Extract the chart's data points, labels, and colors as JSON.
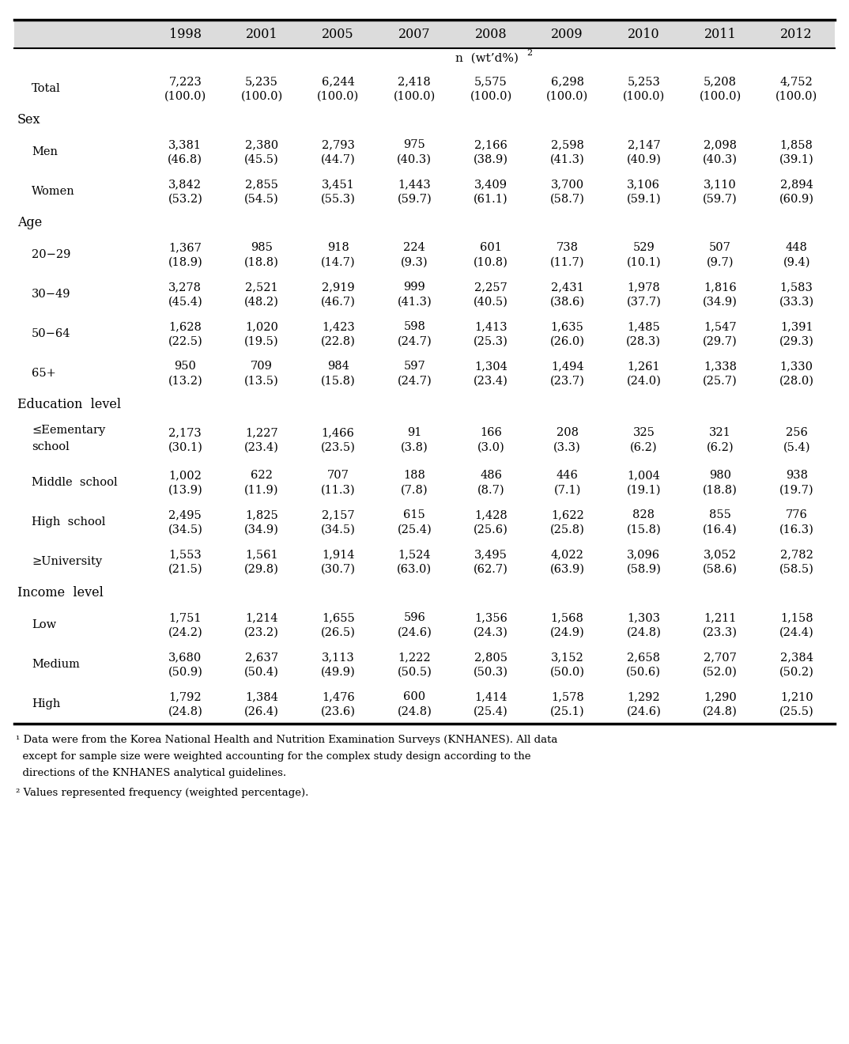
{
  "years": [
    "1998",
    "2001",
    "2005",
    "2007",
    "2008",
    "2009",
    "2010",
    "2011",
    "2012"
  ],
  "rows": [
    {
      "label": "Total",
      "indent": 0,
      "is_section": false,
      "two_line": false,
      "values": [
        [
          "7,223",
          "(100.0)"
        ],
        [
          "5,235",
          "(100.0)"
        ],
        [
          "6,244",
          "(100.0)"
        ],
        [
          "2,418",
          "(100.0)"
        ],
        [
          "5,575",
          "(100.0)"
        ],
        [
          "6,298",
          "(100.0)"
        ],
        [
          "5,253",
          "(100.0)"
        ],
        [
          "5,208",
          "(100.0)"
        ],
        [
          "4,752",
          "(100.0)"
        ]
      ]
    },
    {
      "label": "Sex",
      "indent": 0,
      "is_section": true,
      "two_line": false,
      "values": []
    },
    {
      "label": "  Men",
      "indent": 1,
      "is_section": false,
      "two_line": false,
      "values": [
        [
          "3,381",
          "(46.8)"
        ],
        [
          "2,380",
          "(45.5)"
        ],
        [
          "2,793",
          "(44.7)"
        ],
        [
          "975",
          "(40.3)"
        ],
        [
          "2,166",
          "(38.9)"
        ],
        [
          "2,598",
          "(41.3)"
        ],
        [
          "2,147",
          "(40.9)"
        ],
        [
          "2,098",
          "(40.3)"
        ],
        [
          "1,858",
          "(39.1)"
        ]
      ]
    },
    {
      "label": "  Women",
      "indent": 1,
      "is_section": false,
      "two_line": false,
      "values": [
        [
          "3,842",
          "(53.2)"
        ],
        [
          "2,855",
          "(54.5)"
        ],
        [
          "3,451",
          "(55.3)"
        ],
        [
          "1,443",
          "(59.7)"
        ],
        [
          "3,409",
          "(61.1)"
        ],
        [
          "3,700",
          "(58.7)"
        ],
        [
          "3,106",
          "(59.1)"
        ],
        [
          "3,110",
          "(59.7)"
        ],
        [
          "2,894",
          "(60.9)"
        ]
      ]
    },
    {
      "label": "Age",
      "indent": 0,
      "is_section": true,
      "two_line": false,
      "values": []
    },
    {
      "label": "  20−29",
      "indent": 1,
      "is_section": false,
      "two_line": false,
      "values": [
        [
          "1,367",
          "(18.9)"
        ],
        [
          "985",
          "(18.8)"
        ],
        [
          "918",
          "(14.7)"
        ],
        [
          "224",
          "(9.3)"
        ],
        [
          "601",
          "(10.8)"
        ],
        [
          "738",
          "(11.7)"
        ],
        [
          "529",
          "(10.1)"
        ],
        [
          "507",
          "(9.7)"
        ],
        [
          "448",
          "(9.4)"
        ]
      ]
    },
    {
      "label": "  30−49",
      "indent": 1,
      "is_section": false,
      "two_line": false,
      "values": [
        [
          "3,278",
          "(45.4)"
        ],
        [
          "2,521",
          "(48.2)"
        ],
        [
          "2,919",
          "(46.7)"
        ],
        [
          "999",
          "(41.3)"
        ],
        [
          "2,257",
          "(40.5)"
        ],
        [
          "2,431",
          "(38.6)"
        ],
        [
          "1,978",
          "(37.7)"
        ],
        [
          "1,816",
          "(34.9)"
        ],
        [
          "1,583",
          "(33.3)"
        ]
      ]
    },
    {
      "label": "  50−64",
      "indent": 1,
      "is_section": false,
      "two_line": false,
      "values": [
        [
          "1,628",
          "(22.5)"
        ],
        [
          "1,020",
          "(19.5)"
        ],
        [
          "1,423",
          "(22.8)"
        ],
        [
          "598",
          "(24.7)"
        ],
        [
          "1,413",
          "(25.3)"
        ],
        [
          "1,635",
          "(26.0)"
        ],
        [
          "1,485",
          "(28.3)"
        ],
        [
          "1,547",
          "(29.7)"
        ],
        [
          "1,391",
          "(29.3)"
        ]
      ]
    },
    {
      "label": "  65+",
      "indent": 1,
      "is_section": false,
      "two_line": false,
      "values": [
        [
          "950",
          "(13.2)"
        ],
        [
          "709",
          "(13.5)"
        ],
        [
          "984",
          "(15.8)"
        ],
        [
          "597",
          "(24.7)"
        ],
        [
          "1,304",
          "(23.4)"
        ],
        [
          "1,494",
          "(23.7)"
        ],
        [
          "1,261",
          "(24.0)"
        ],
        [
          "1,338",
          "(25.7)"
        ],
        [
          "1,330",
          "(28.0)"
        ]
      ]
    },
    {
      "label": "Education  level",
      "indent": 0,
      "is_section": true,
      "two_line": false,
      "values": []
    },
    {
      "label": "  ≤Eementary\n  school",
      "indent": 1,
      "is_section": false,
      "two_line": true,
      "values": [
        [
          "2,173",
          "(30.1)"
        ],
        [
          "1,227",
          "(23.4)"
        ],
        [
          "1,466",
          "(23.5)"
        ],
        [
          "91",
          "(3.8)"
        ],
        [
          "166",
          "(3.0)"
        ],
        [
          "208",
          "(3.3)"
        ],
        [
          "325",
          "(6.2)"
        ],
        [
          "321",
          "(6.2)"
        ],
        [
          "256",
          "(5.4)"
        ]
      ]
    },
    {
      "label": "  Middle  school",
      "indent": 1,
      "is_section": false,
      "two_line": false,
      "values": [
        [
          "1,002",
          "(13.9)"
        ],
        [
          "622",
          "(11.9)"
        ],
        [
          "707",
          "(11.3)"
        ],
        [
          "188",
          "(7.8)"
        ],
        [
          "486",
          "(8.7)"
        ],
        [
          "446",
          "(7.1)"
        ],
        [
          "1,004",
          "(19.1)"
        ],
        [
          "980",
          "(18.8)"
        ],
        [
          "938",
          "(19.7)"
        ]
      ]
    },
    {
      "label": "  High  school",
      "indent": 1,
      "is_section": false,
      "two_line": false,
      "values": [
        [
          "2,495",
          "(34.5)"
        ],
        [
          "1,825",
          "(34.9)"
        ],
        [
          "2,157",
          "(34.5)"
        ],
        [
          "615",
          "(25.4)"
        ],
        [
          "1,428",
          "(25.6)"
        ],
        [
          "1,622",
          "(25.8)"
        ],
        [
          "828",
          "(15.8)"
        ],
        [
          "855",
          "(16.4)"
        ],
        [
          "776",
          "(16.3)"
        ]
      ]
    },
    {
      "label": "  ≥University",
      "indent": 1,
      "is_section": false,
      "two_line": false,
      "values": [
        [
          "1,553",
          "(21.5)"
        ],
        [
          "1,561",
          "(29.8)"
        ],
        [
          "1,914",
          "(30.7)"
        ],
        [
          "1,524",
          "(63.0)"
        ],
        [
          "3,495",
          "(62.7)"
        ],
        [
          "4,022",
          "(63.9)"
        ],
        [
          "3,096",
          "(58.9)"
        ],
        [
          "3,052",
          "(58.6)"
        ],
        [
          "2,782",
          "(58.5)"
        ]
      ]
    },
    {
      "label": "Income  level",
      "indent": 0,
      "is_section": true,
      "two_line": false,
      "values": []
    },
    {
      "label": "  Low",
      "indent": 1,
      "is_section": false,
      "two_line": false,
      "values": [
        [
          "1,751",
          "(24.2)"
        ],
        [
          "1,214",
          "(23.2)"
        ],
        [
          "1,655",
          "(26.5)"
        ],
        [
          "596",
          "(24.6)"
        ],
        [
          "1,356",
          "(24.3)"
        ],
        [
          "1,568",
          "(24.9)"
        ],
        [
          "1,303",
          "(24.8)"
        ],
        [
          "1,211",
          "(23.3)"
        ],
        [
          "1,158",
          "(24.4)"
        ]
      ]
    },
    {
      "label": "  Medium",
      "indent": 1,
      "is_section": false,
      "two_line": false,
      "values": [
        [
          "3,680",
          "(50.9)"
        ],
        [
          "2,637",
          "(50.4)"
        ],
        [
          "3,113",
          "(49.9)"
        ],
        [
          "1,222",
          "(50.5)"
        ],
        [
          "2,805",
          "(50.3)"
        ],
        [
          "3,152",
          "(50.0)"
        ],
        [
          "2,658",
          "(50.6)"
        ],
        [
          "2,707",
          "(52.0)"
        ],
        [
          "2,384",
          "(50.2)"
        ]
      ]
    },
    {
      "label": "  High",
      "indent": 1,
      "is_section": false,
      "two_line": false,
      "values": [
        [
          "1,792",
          "(24.8)"
        ],
        [
          "1,384",
          "(26.4)"
        ],
        [
          "1,476",
          "(23.6)"
        ],
        [
          "600",
          "(24.8)"
        ],
        [
          "1,414",
          "(25.4)"
        ],
        [
          "1,578",
          "(25.1)"
        ],
        [
          "1,292",
          "(24.6)"
        ],
        [
          "1,290",
          "(24.8)"
        ],
        [
          "1,210",
          "(25.5)"
        ]
      ]
    }
  ],
  "footnote1_sup": "¹",
  "footnote1_text": " Data were from the Korea National Health and Nutrition Examination Surveys (KNHANES). All data except for sample size were weighted accounting for the complex study design according to the directions of the KNHANES analytical guidelines.",
  "footnote2_sup": "²",
  "footnote2_text": " Values represented frequency (weighted percentage).",
  "header_bg": "#dcdcdc",
  "body_bg": "#ffffff",
  "font_size_header": 11.5,
  "font_size_data": 10.5,
  "font_size_footnote": 9.5
}
